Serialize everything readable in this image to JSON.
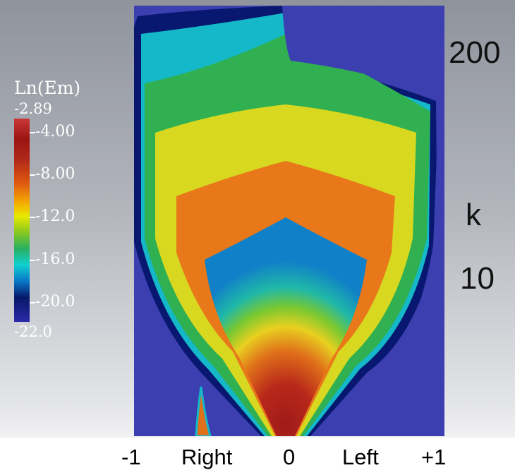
{
  "chart_data": {
    "type": "heatmap",
    "title": "",
    "colorbar": {
      "title": "Ln(Em)",
      "max_label": "-2.89",
      "min_label": "-22.0",
      "ticks": [
        "-4.00",
        "-8.00",
        "-12.0",
        "-16.0",
        "-20.0"
      ],
      "range": [
        -22.0,
        -2.89
      ]
    },
    "x_axis": {
      "ticks": [
        "-1",
        "Right",
        "0",
        "Left",
        "+1"
      ],
      "range": [
        -1,
        1
      ]
    },
    "y_axis": {
      "label": "k",
      "ticks": [
        "200",
        "10"
      ]
    }
  }
}
